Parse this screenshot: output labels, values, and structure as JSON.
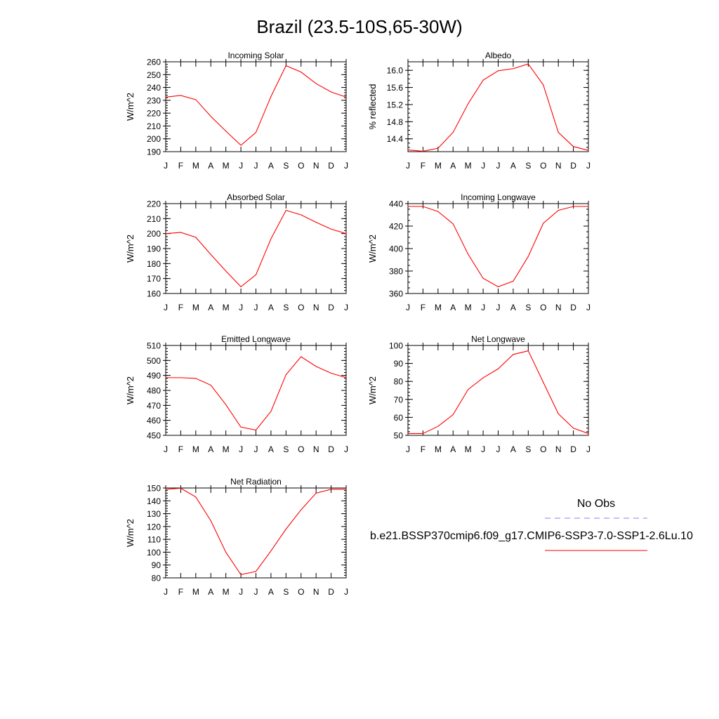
{
  "title": "Brazil (23.5-10S,65-30W)",
  "months": [
    "J",
    "F",
    "M",
    "A",
    "M",
    "J",
    "J",
    "A",
    "S",
    "O",
    "N",
    "D",
    "J"
  ],
  "chart_data": [
    {
      "type": "line",
      "title": "Incoming Solar",
      "ylabel": "W/m^2",
      "ylim": [
        190,
        260
      ],
      "yticks": [
        190,
        200,
        210,
        220,
        230,
        240,
        250,
        260
      ],
      "ytick_labels": [
        "190",
        "200",
        "210",
        "220",
        "230",
        "240",
        "250",
        "260"
      ],
      "yminor": 2,
      "series": [
        {
          "name": "b.e21.BSSP370cmip6.f09_g17.CMIP6-SSP3-7.0-SSP1-2.6Lu.10",
          "color": "#ff0000",
          "values": [
            232.5,
            233.8,
            230.5,
            217.5,
            206.0,
            195.0,
            205.0,
            233.0,
            257.0,
            252.0,
            243.0,
            236.5,
            232.5
          ]
        }
      ]
    },
    {
      "type": "line",
      "title": "Albedo",
      "ylabel": "% reflected",
      "ylim": [
        14.1,
        16.2
      ],
      "yticks": [
        14.4,
        14.8,
        15.2,
        15.6,
        16.0
      ],
      "ytick_labels": [
        "14.4",
        "14.8",
        "15.2",
        "15.6",
        "16.0"
      ],
      "yminor": 0.1,
      "series": [
        {
          "name": "b.e21.BSSP370cmip6.f09_g17.CMIP6-SSP3-7.0-SSP1-2.6Lu.10",
          "color": "#ff0000",
          "values": [
            14.14,
            14.11,
            14.18,
            14.55,
            15.22,
            15.77,
            15.99,
            16.04,
            16.15,
            15.66,
            14.55,
            14.22,
            14.13
          ]
        }
      ]
    },
    {
      "type": "line",
      "title": "Absorbed Solar",
      "ylabel": "W/m^2",
      "ylim": [
        160,
        220
      ],
      "yticks": [
        160,
        170,
        180,
        190,
        200,
        210,
        220
      ],
      "ytick_labels": [
        "160",
        "170",
        "180",
        "190",
        "200",
        "210",
        "220"
      ],
      "yminor": 2,
      "series": [
        {
          "name": "b.e21.BSSP370cmip6.f09_g17.CMIP6-SSP3-7.0-SSP1-2.6Lu.10",
          "color": "#ff0000",
          "values": [
            200.0,
            200.8,
            197.5,
            186.0,
            175.0,
            164.5,
            172.5,
            196.5,
            215.5,
            212.5,
            207.5,
            203.0,
            200.0
          ]
        }
      ]
    },
    {
      "type": "line",
      "title": "Incoming Longwave",
      "ylabel": "W/m^2",
      "ylim": [
        360,
        440
      ],
      "yticks": [
        360,
        380,
        400,
        420,
        440
      ],
      "ytick_labels": [
        "360",
        "380",
        "400",
        "420",
        "440"
      ],
      "yminor": 5,
      "series": [
        {
          "name": "b.e21.BSSP370cmip6.f09_g17.CMIP6-SSP3-7.0-SSP1-2.6Lu.10",
          "color": "#ff0000",
          "values": [
            437.5,
            437.5,
            433.0,
            422.0,
            395.0,
            373.5,
            366.0,
            371.0,
            393.0,
            422.5,
            434.0,
            437.5,
            437.5
          ]
        }
      ]
    },
    {
      "type": "line",
      "title": "Emitted Longwave",
      "ylabel": "W/m^2",
      "ylim": [
        450,
        510
      ],
      "yticks": [
        450,
        460,
        470,
        480,
        490,
        500,
        510
      ],
      "ytick_labels": [
        "450",
        "460",
        "470",
        "480",
        "490",
        "500",
        "510"
      ],
      "yminor": 2,
      "series": [
        {
          "name": "b.e21.BSSP370cmip6.f09_g17.CMIP6-SSP3-7.0-SSP1-2.6Lu.10",
          "color": "#ff0000",
          "values": [
            488.5,
            488.5,
            488.0,
            483.5,
            470.5,
            455.5,
            453.5,
            466.0,
            490.5,
            502.5,
            496.0,
            491.5,
            488.5
          ]
        }
      ]
    },
    {
      "type": "line",
      "title": "Net Longwave",
      "ylabel": "W/m^2",
      "ylim": [
        50,
        100
      ],
      "yticks": [
        50,
        60,
        70,
        80,
        90,
        100
      ],
      "ytick_labels": [
        "50",
        "60",
        "70",
        "80",
        "90",
        "100"
      ],
      "yminor": 2,
      "series": [
        {
          "name": "b.e21.BSSP370cmip6.f09_g17.CMIP6-SSP3-7.0-SSP1-2.6Lu.10",
          "color": "#ff0000",
          "values": [
            51.0,
            51.0,
            55.0,
            61.5,
            75.5,
            82.0,
            87.0,
            95.0,
            97.0,
            79.5,
            62.0,
            54.0,
            51.0
          ]
        }
      ]
    },
    {
      "type": "line",
      "title": "Net Radiation",
      "ylabel": "W/m^2",
      "ylim": [
        80,
        150
      ],
      "yticks": [
        80,
        90,
        100,
        110,
        120,
        130,
        140,
        150
      ],
      "ytick_labels": [
        "80",
        "90",
        "100",
        "110",
        "120",
        "130",
        "140",
        "150"
      ],
      "yminor": 2,
      "series": [
        {
          "name": "b.e21.BSSP370cmip6.f09_g17.CMIP6-SSP3-7.0-SSP1-2.6Lu.10",
          "color": "#ff0000",
          "values": [
            149.0,
            149.8,
            143.0,
            124.5,
            100.0,
            82.5,
            85.0,
            101.0,
            118.0,
            133.0,
            146.0,
            149.0,
            149.0
          ]
        }
      ]
    }
  ],
  "legend": {
    "placement": "right",
    "entries": [
      {
        "label": "No Obs",
        "color": "#8080ff",
        "dash": "dashed"
      },
      {
        "label": "b.e21.BSSP370cmip6.f09_g17.CMIP6-SSP3-7.0-SSP1-2.6Lu.10",
        "color": "#ff0000",
        "dash": "solid"
      }
    ]
  }
}
